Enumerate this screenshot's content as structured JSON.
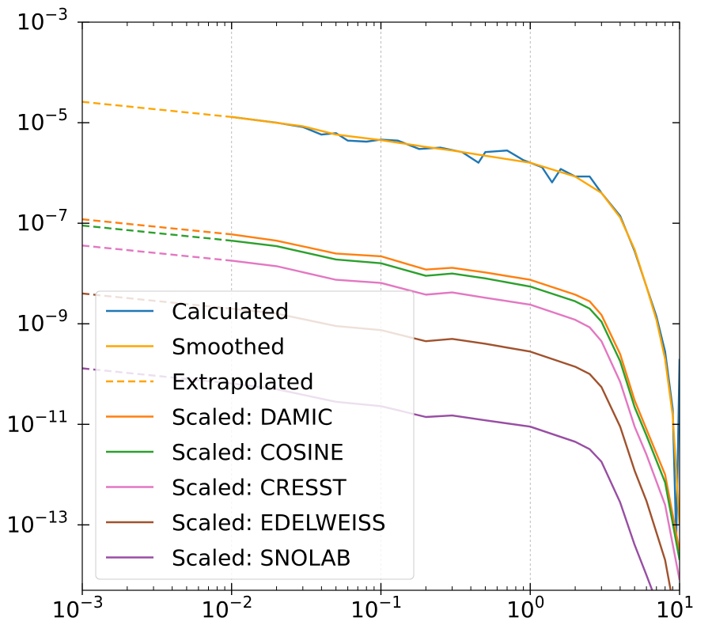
{
  "chart_data": {
    "type": "line",
    "xscale": "log",
    "yscale": "log",
    "xlim": [
      0.001,
      10
    ],
    "ylim": [
      5e-15,
      0.001
    ],
    "grid": "vertical dashed lines at x major ticks",
    "legend_position": "lower-left",
    "xticks": [
      {
        "value": 0.001,
        "base": "10",
        "exp": "−3"
      },
      {
        "value": 0.01,
        "base": "10",
        "exp": "−2"
      },
      {
        "value": 0.1,
        "base": "10",
        "exp": "−1"
      },
      {
        "value": 1,
        "base": "10",
        "exp": "0"
      },
      {
        "value": 10,
        "base": "10",
        "exp": "1"
      }
    ],
    "yticks": [
      {
        "value": 0.001,
        "base": "10",
        "exp": "−3"
      },
      {
        "value": 1e-05,
        "base": "10",
        "exp": "−5"
      },
      {
        "value": 1e-07,
        "base": "10",
        "exp": "−7"
      },
      {
        "value": 1e-09,
        "base": "10",
        "exp": "−9"
      },
      {
        "value": 1e-11,
        "base": "10",
        "exp": "−11"
      },
      {
        "value": 1e-13,
        "base": "10",
        "exp": "−13"
      }
    ],
    "series": [
      {
        "name": "Calculated",
        "color": "#1f77b4",
        "style": "solid",
        "points": [
          [
            0.01,
            1.3e-05
          ],
          [
            0.02,
            1e-05
          ],
          [
            0.03,
            8.2e-06
          ],
          [
            0.04,
            5.8e-06
          ],
          [
            0.05,
            6.2e-06
          ],
          [
            0.06,
            4.4e-06
          ],
          [
            0.08,
            4.2e-06
          ],
          [
            0.1,
            4.6e-06
          ],
          [
            0.13,
            4.4e-06
          ],
          [
            0.18,
            3e-06
          ],
          [
            0.25,
            3.2e-06
          ],
          [
            0.35,
            2.6e-06
          ],
          [
            0.45,
            1.6e-06
          ],
          [
            0.5,
            2.6e-06
          ],
          [
            0.7,
            2.8e-06
          ],
          [
            0.9,
            1.8e-06
          ],
          [
            1.2,
            1.3e-06
          ],
          [
            1.4,
            6.5e-07
          ],
          [
            1.6,
            1.2e-06
          ],
          [
            2.0,
            8.5e-07
          ],
          [
            2.5,
            8.5e-07
          ],
          [
            3.0,
            4e-07
          ],
          [
            4.0,
            1.4e-07
          ],
          [
            5.0,
            2.8e-08
          ],
          [
            6.0,
            5.5e-09
          ],
          [
            7.0,
            1.4e-09
          ],
          [
            8.0,
            2.8e-10
          ],
          [
            9.0,
            2e-11
          ],
          [
            9.5,
            5e-14
          ],
          [
            10,
            2e-10
          ]
        ]
      },
      {
        "name": "Smoothed",
        "color": "#ffa500",
        "style": "solid",
        "points": [
          [
            0.01,
            1.3e-05
          ],
          [
            0.03,
            8.5e-06
          ],
          [
            0.05,
            5.8e-06
          ],
          [
            0.1,
            4.5e-06
          ],
          [
            0.2,
            3.3e-06
          ],
          [
            0.3,
            2.8e-06
          ],
          [
            0.5,
            2.2e-06
          ],
          [
            1.0,
            1.6e-06
          ],
          [
            2.0,
            8.5e-07
          ],
          [
            3.0,
            4e-07
          ],
          [
            4.0,
            1.3e-07
          ],
          [
            5.0,
            3e-08
          ],
          [
            6.0,
            5.5e-09
          ],
          [
            7.0,
            1.2e-09
          ],
          [
            8.0,
            2e-10
          ],
          [
            9.0,
            1.5e-11
          ],
          [
            10,
            1e-13
          ]
        ]
      },
      {
        "name": "Extrapolated",
        "color": "#ffa500",
        "style": "dashed",
        "points": [
          [
            0.001,
            2.6e-05
          ],
          [
            0.01,
            1.3e-05
          ]
        ]
      },
      {
        "name": "Scaled: DAMIC",
        "color": "#ff7f0e",
        "style": "solid",
        "points": [
          [
            0.01,
            6e-08
          ],
          [
            0.02,
            4.5e-08
          ],
          [
            0.05,
            2.5e-08
          ],
          [
            0.1,
            2.2e-08
          ],
          [
            0.2,
            1.2e-08
          ],
          [
            0.3,
            1.3e-08
          ],
          [
            0.5,
            1.05e-08
          ],
          [
            1.0,
            7.5e-09
          ],
          [
            2.0,
            3.8e-09
          ],
          [
            2.5,
            2.8e-09
          ],
          [
            3.0,
            1.5e-09
          ],
          [
            4.0,
            2.5e-10
          ],
          [
            5.0,
            3e-11
          ],
          [
            6.0,
            8e-12
          ],
          [
            8.0,
            1e-12
          ],
          [
            10,
            3e-14
          ]
        ]
      },
      {
        "name": "Scaled: COSINE",
        "color": "#2ca02c",
        "style": "solid",
        "points": [
          [
            0.01,
            4.5e-08
          ],
          [
            0.02,
            3.5e-08
          ],
          [
            0.05,
            1.9e-08
          ],
          [
            0.1,
            1.6e-08
          ],
          [
            0.2,
            9e-09
          ],
          [
            0.3,
            1e-08
          ],
          [
            0.5,
            8e-09
          ],
          [
            1.0,
            5.5e-09
          ],
          [
            2.0,
            2.8e-09
          ],
          [
            2.5,
            2e-09
          ],
          [
            3.0,
            1.1e-09
          ],
          [
            4.0,
            1.8e-10
          ],
          [
            5.0,
            2.2e-11
          ],
          [
            6.0,
            6e-12
          ],
          [
            8.0,
            7e-13
          ],
          [
            10,
            2e-14
          ]
        ]
      },
      {
        "name": "Scaled: CRESST",
        "color": "#e377c2",
        "style": "solid",
        "points": [
          [
            0.01,
            1.8e-08
          ],
          [
            0.02,
            1.4e-08
          ],
          [
            0.05,
            7.5e-09
          ],
          [
            0.1,
            6.5e-09
          ],
          [
            0.2,
            3.8e-09
          ],
          [
            0.3,
            4.2e-09
          ],
          [
            0.5,
            3.3e-09
          ],
          [
            1.0,
            2.4e-09
          ],
          [
            2.0,
            1.2e-09
          ],
          [
            2.5,
            8.5e-10
          ],
          [
            3.0,
            4.5e-10
          ],
          [
            4.0,
            7e-11
          ],
          [
            5.0,
            9e-12
          ],
          [
            6.0,
            2.5e-12
          ],
          [
            8.0,
            2.5e-13
          ],
          [
            10,
            8e-15
          ]
        ]
      },
      {
        "name": "Scaled: EDELWEISS",
        "color": "#a0522d",
        "style": "solid",
        "points": [
          [
            0.01,
            2e-09
          ],
          [
            0.02,
            1.6e-09
          ],
          [
            0.05,
            9e-10
          ],
          [
            0.1,
            7.5e-10
          ],
          [
            0.2,
            4.5e-10
          ],
          [
            0.3,
            5e-10
          ],
          [
            0.5,
            4e-10
          ],
          [
            1.0,
            2.8e-10
          ],
          [
            2.0,
            1.4e-10
          ],
          [
            2.5,
            1e-10
          ],
          [
            3.0,
            5.5e-11
          ],
          [
            4.0,
            9e-12
          ],
          [
            5.0,
            1.2e-12
          ],
          [
            6.0,
            3e-13
          ],
          [
            8.0,
            2e-14
          ],
          [
            9.0,
            3e-15
          ]
        ]
      },
      {
        "name": "Scaled: SNOLAB",
        "color": "#984ea3",
        "style": "solid",
        "points": [
          [
            0.01,
            6.5e-11
          ],
          [
            0.02,
            5e-11
          ],
          [
            0.05,
            2.8e-11
          ],
          [
            0.1,
            2.3e-11
          ],
          [
            0.2,
            1.4e-11
          ],
          [
            0.3,
            1.5e-11
          ],
          [
            0.5,
            1.2e-11
          ],
          [
            1.0,
            9e-12
          ],
          [
            2.0,
            4.5e-12
          ],
          [
            2.5,
            3.2e-12
          ],
          [
            3.0,
            1.8e-12
          ],
          [
            4.0,
            2.8e-13
          ],
          [
            5.0,
            4e-14
          ],
          [
            6.0,
            1e-14
          ],
          [
            7.0,
            3e-15
          ]
        ]
      },
      {
        "name": "",
        "color": "#ff7f0e",
        "style": "dashed",
        "points": [
          [
            0.001,
            1.2e-07
          ],
          [
            0.01,
            6e-08
          ]
        ]
      },
      {
        "name": "",
        "color": "#2ca02c",
        "style": "dashed",
        "points": [
          [
            0.001,
            9e-08
          ],
          [
            0.01,
            4.5e-08
          ]
        ]
      },
      {
        "name": "",
        "color": "#e377c2",
        "style": "dashed",
        "points": [
          [
            0.001,
            3.6e-08
          ],
          [
            0.01,
            1.8e-08
          ]
        ]
      },
      {
        "name": "",
        "color": "#a0522d",
        "style": "dashed",
        "points": [
          [
            0.001,
            4e-09
          ],
          [
            0.01,
            2e-09
          ]
        ]
      },
      {
        "name": "",
        "color": "#984ea3",
        "style": "dashed",
        "points": [
          [
            0.001,
            1.3e-10
          ],
          [
            0.01,
            6.5e-11
          ]
        ]
      }
    ],
    "legend": [
      {
        "label": "Calculated",
        "color": "#1f77b4",
        "style": "solid"
      },
      {
        "label": "Smoothed",
        "color": "#ffa500",
        "style": "solid"
      },
      {
        "label": "Extrapolated",
        "color": "#ffa500",
        "style": "dashed"
      },
      {
        "label": "Scaled: DAMIC",
        "color": "#ff7f0e",
        "style": "solid"
      },
      {
        "label": "Scaled: COSINE",
        "color": "#2ca02c",
        "style": "solid"
      },
      {
        "label": "Scaled: CRESST",
        "color": "#e377c2",
        "style": "solid"
      },
      {
        "label": "Scaled: EDELWEISS",
        "color": "#a0522d",
        "style": "solid"
      },
      {
        "label": "Scaled: SNOLAB",
        "color": "#984ea3",
        "style": "solid"
      }
    ]
  }
}
